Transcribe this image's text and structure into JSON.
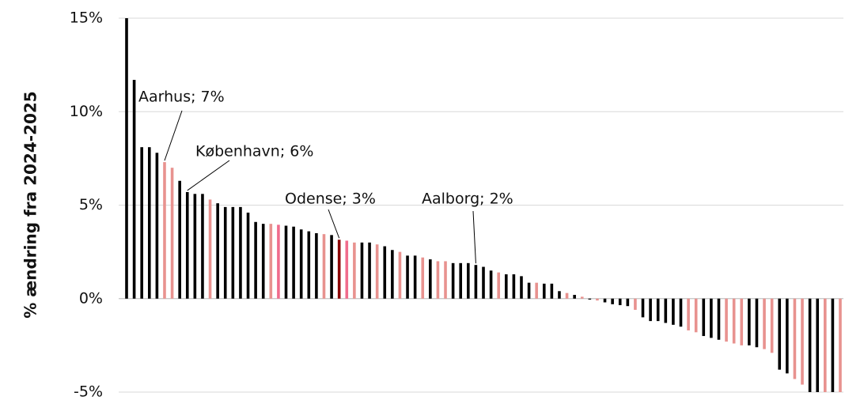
{
  "chart_data": {
    "type": "bar",
    "y_label": "% ændring fra 2024-2025",
    "annotations": [
      "Aarhus; 7%",
      "København; 6%",
      "Odense; 3%",
      "Aalborg; 2%"
    ],
    "categories": [
      null,
      null,
      null,
      null,
      null,
      null,
      null,
      null,
      null,
      null,
      null,
      null,
      null,
      null,
      null,
      null,
      null,
      null,
      null,
      null,
      null,
      null,
      null,
      null,
      null,
      null,
      null,
      null,
      null,
      null,
      null,
      null,
      null,
      null,
      null,
      null,
      null,
      null,
      null,
      null,
      null,
      null,
      null,
      null,
      null,
      null,
      null,
      null,
      null,
      null,
      null,
      null,
      null,
      null,
      null,
      null,
      null,
      null,
      null,
      null,
      null,
      null,
      null,
      null,
      null,
      null,
      null,
      null,
      null,
      null,
      null,
      null,
      null,
      null,
      null,
      null,
      null,
      null,
      null,
      null,
      null,
      null,
      null,
      null,
      null,
      null,
      null,
      null,
      null,
      null,
      null,
      null,
      null,
      null,
      null
    ],
    "values": [
      15,
      11.7,
      8.1,
      8.1,
      7.8,
      7.3,
      7.0,
      6.3,
      5.7,
      5.6,
      5.6,
      5.3,
      5.1,
      4.9,
      4.9,
      4.9,
      4.6,
      4.1,
      4.0,
      4.0,
      3.95,
      3.9,
      3.85,
      3.7,
      3.6,
      3.5,
      3.45,
      3.4,
      3.15,
      3.1,
      3.0,
      3.0,
      3.0,
      2.9,
      2.8,
      2.6,
      2.5,
      2.3,
      2.3,
      2.2,
      2.1,
      2.0,
      2.0,
      1.9,
      1.9,
      1.9,
      1.8,
      1.7,
      1.5,
      1.4,
      1.3,
      1.3,
      1.2,
      0.85,
      0.85,
      0.8,
      0.8,
      0.4,
      0.3,
      0.2,
      0.1,
      -0.05,
      -0.1,
      -0.2,
      -0.3,
      -0.35,
      -0.4,
      -0.6,
      -1.0,
      -1.2,
      -1.2,
      -1.3,
      -1.4,
      -1.5,
      -1.7,
      -1.8,
      -2.0,
      -2.1,
      -2.2,
      -2.3,
      -2.4,
      -2.5,
      -2.5,
      -2.6,
      -2.7,
      -2.9,
      -3.8,
      -4.0,
      -4.3,
      -4.6,
      -5,
      -5,
      -5,
      -5,
      -5
    ],
    "colors": [
      "#000000",
      "#000000",
      "#000000",
      "#000000",
      "#000000",
      "#e8928f",
      "#e8928f",
      "#000000",
      "#000000",
      "#000000",
      "#000000",
      "#e8928f",
      "#000000",
      "#000000",
      "#000000",
      "#000000",
      "#000000",
      "#000000",
      "#000000",
      "#e8928f",
      "#f06c8c",
      "#000000",
      "#000000",
      "#000000",
      "#000000",
      "#000000",
      "#e8928f",
      "#000000",
      "#8b0000",
      "#f06c8c",
      "#e8928f",
      "#000000",
      "#000000",
      "#e8928f",
      "#000000",
      "#000000",
      "#e8928f",
      "#000000",
      "#000000",
      "#e8928f",
      "#000000",
      "#e8928f",
      "#e8928f",
      "#000000",
      "#000000",
      "#000000",
      "#000000",
      "#000000",
      "#000000",
      "#e8928f",
      "#000000",
      "#000000",
      "#000000",
      "#000000",
      "#e8928f",
      "#000000",
      "#000000",
      "#000000",
      "#e8928f",
      "#000000",
      "#e8928f",
      "#000000",
      "#e8928f",
      "#000000",
      "#000000",
      "#000000",
      "#000000",
      "#e8928f",
      "#000000",
      "#000000",
      "#000000",
      "#000000",
      "#000000",
      "#000000",
      "#e8928f",
      "#e8928f",
      "#000000",
      "#000000",
      "#000000",
      "#e8928f",
      "#e8928f",
      "#e8928f",
      "#000000",
      "#000000",
      "#e8928f",
      "#e8928f",
      "#000000",
      "#000000",
      "#e8928f",
      "#e8928f",
      "#000000",
      "#000000",
      "#e8928f",
      "#000000",
      "#e8928f"
    ],
    "ylim": [
      -5,
      15
    ],
    "yticks": [
      {
        "value": -5,
        "label": "-5%"
      },
      {
        "value": 0,
        "label": "0%"
      },
      {
        "value": 5,
        "label": "5%"
      },
      {
        "value": 10,
        "label": "10%"
      },
      {
        "value": 15,
        "label": "15%"
      }
    ],
    "grid": true
  }
}
